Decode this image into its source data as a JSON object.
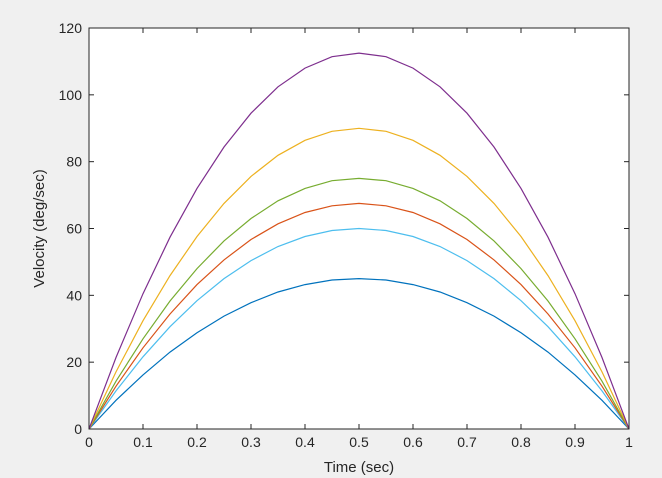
{
  "chart_data": {
    "type": "line",
    "title": "",
    "xlabel": "Time (sec)",
    "ylabel": "Velocity (deg/sec)",
    "xlim": [
      0,
      1
    ],
    "ylim": [
      0,
      120
    ],
    "x_ticks": [
      "0",
      "0.1",
      "0.2",
      "0.3",
      "0.4",
      "0.5",
      "0.6",
      "0.7",
      "0.8",
      "0.9",
      "1"
    ],
    "y_ticks": [
      "0",
      "20",
      "40",
      "60",
      "80",
      "100",
      "120"
    ],
    "grid": false,
    "legend": "none",
    "x": [
      0,
      0.05,
      0.1,
      0.15,
      0.2,
      0.25,
      0.3,
      0.35,
      0.4,
      0.45,
      0.5,
      0.55,
      0.6,
      0.65,
      0.7,
      0.75,
      0.8,
      0.85,
      0.9,
      0.95,
      1
    ],
    "series": [
      {
        "color": "#0072bd",
        "values": [
          0,
          8.6,
          16.2,
          23.0,
          28.8,
          33.8,
          37.8,
          41.0,
          43.2,
          44.6,
          45,
          44.6,
          43.2,
          41.0,
          37.8,
          33.8,
          28.8,
          23.0,
          16.2,
          8.6,
          0
        ]
      },
      {
        "color": "#4dbeee",
        "values": [
          0,
          11.4,
          21.6,
          30.6,
          38.4,
          45.0,
          50.4,
          54.6,
          57.6,
          59.4,
          60,
          59.4,
          57.6,
          54.6,
          50.4,
          45.0,
          38.4,
          30.6,
          21.6,
          11.4,
          0
        ]
      },
      {
        "color": "#d95319",
        "values": [
          0,
          12.8,
          24.3,
          34.4,
          43.2,
          50.6,
          56.7,
          61.4,
          64.8,
          66.8,
          67.5,
          66.8,
          64.8,
          61.4,
          56.7,
          50.6,
          43.2,
          34.4,
          24.3,
          12.8,
          0
        ]
      },
      {
        "color": "#77ac30",
        "values": [
          0,
          14.3,
          27.0,
          38.3,
          48.0,
          56.3,
          63.0,
          68.3,
          72.0,
          74.3,
          75,
          74.3,
          72.0,
          68.3,
          63.0,
          56.3,
          48.0,
          38.3,
          27.0,
          14.3,
          0
        ]
      },
      {
        "color": "#edb120",
        "values": [
          0,
          17.1,
          32.4,
          45.9,
          57.6,
          67.5,
          75.6,
          81.9,
          86.4,
          89.1,
          90,
          89.1,
          86.4,
          81.9,
          75.6,
          67.5,
          57.6,
          45.9,
          32.4,
          17.1,
          0
        ]
      },
      {
        "color": "#7e2f8e",
        "values": [
          0,
          21.4,
          40.5,
          57.4,
          72.0,
          84.4,
          94.5,
          102.4,
          108.0,
          111.4,
          112.5,
          111.4,
          108.0,
          102.4,
          94.5,
          84.4,
          72.0,
          57.4,
          40.5,
          21.4,
          0
        ]
      }
    ]
  }
}
